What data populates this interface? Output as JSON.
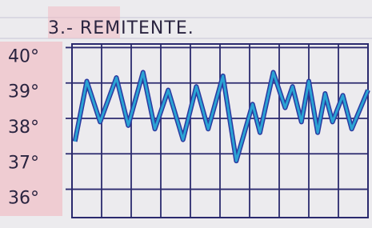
{
  "chart_data": {
    "type": "line",
    "title": "3.- REMITENTE.",
    "x": [
      0.1,
      0.5,
      0.95,
      1.5,
      1.9,
      2.4,
      2.8,
      3.25,
      3.75,
      4.2,
      4.6,
      5.1,
      5.55,
      6.1,
      6.35,
      6.8,
      7.2,
      7.45,
      7.75,
      8.0,
      8.3,
      8.55,
      8.8,
      9.15,
      9.45,
      10.0
    ],
    "series": [
      {
        "color": "#2aa3d4",
        "outline": "#2b3aa0",
        "values": [
          37.35,
          39.05,
          37.9,
          39.15,
          37.8,
          39.3,
          37.7,
          38.8,
          37.4,
          38.9,
          37.7,
          39.2,
          36.8,
          38.4,
          37.6,
          39.3,
          38.3,
          38.9,
          37.9,
          39.05,
          37.6,
          38.7,
          37.9,
          38.65,
          37.7,
          38.8
        ]
      }
    ],
    "xlim": [
      0,
      10
    ],
    "xticks": [
      0,
      1,
      2,
      3,
      4,
      5,
      6,
      7,
      8,
      9,
      10
    ],
    "ylim": [
      35.2,
      40.1
    ],
    "yticks": [
      {
        "value": 40,
        "label": "40°"
      },
      {
        "value": 39,
        "label": "39°"
      },
      {
        "value": 38,
        "label": "38°"
      },
      {
        "value": 37,
        "label": "37°"
      },
      {
        "value": 36,
        "label": "36°"
      }
    ],
    "grid": true
  }
}
